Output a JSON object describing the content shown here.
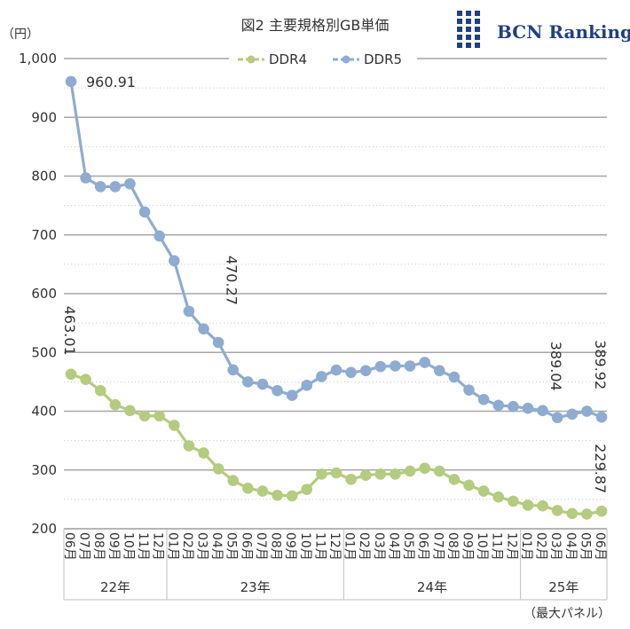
{
  "chart_data": {
    "type": "line",
    "title": "図2 主要規格別GB単価",
    "ylabel": "（円）",
    "ylim": [
      200,
      1000
    ],
    "yticks": [
      "200",
      "300",
      "400",
      "500",
      "600",
      "700",
      "800",
      "900",
      "1,000"
    ],
    "grid": true,
    "legend_position": "top",
    "source_logo": "BCN Ranking",
    "footnote": "（最大パネル）",
    "x": [
      "06月",
      "07月",
      "08月",
      "09月",
      "10月",
      "11月",
      "12月",
      "01月",
      "02月",
      "03月",
      "04月",
      "05月",
      "06月",
      "07月",
      "08月",
      "09月",
      "10月",
      "11月",
      "12月",
      "01月",
      "02月",
      "03月",
      "04月",
      "05月",
      "06月",
      "07月",
      "08月",
      "09月",
      "10月",
      "11月",
      "12月",
      "01月",
      "02月",
      "03月",
      "04月",
      "05月",
      "06月"
    ],
    "year_groups": [
      {
        "label": "22年",
        "start": 0,
        "end": 6
      },
      {
        "label": "23年",
        "start": 7,
        "end": 18
      },
      {
        "label": "24年",
        "start": 19,
        "end": 30
      },
      {
        "label": "25年",
        "start": 31,
        "end": 36
      }
    ],
    "series": [
      {
        "name": "DDR4",
        "color": "#b4cc7f",
        "values": [
          463.01,
          454,
          435,
          411,
          401,
          392,
          392,
          376,
          341,
          329,
          302,
          282,
          269,
          264,
          257,
          256,
          267,
          293,
          295,
          284,
          291,
          293,
          293,
          298,
          303,
          298,
          284,
          274,
          264,
          254,
          247,
          240,
          239,
          231,
          226,
          225,
          229.87
        ],
        "labels": [
          {
            "index": 0,
            "text": "463.01"
          },
          {
            "index": 36,
            "text": "229.87"
          }
        ]
      },
      {
        "name": "DDR5",
        "color": "#8eacd2",
        "values": [
          960.91,
          797,
          782,
          782,
          787,
          739,
          698,
          656,
          570,
          540,
          517,
          470.27,
          450,
          446,
          435,
          427,
          444,
          459,
          470,
          466,
          469,
          476,
          477,
          477,
          483,
          469,
          458,
          436,
          420,
          410,
          408,
          405,
          401,
          389.04,
          395,
          400,
          389.92
        ],
        "labels": [
          {
            "index": 0,
            "text": "960.91"
          },
          {
            "index": 11,
            "text": "470.27"
          },
          {
            "index": 33,
            "text": "389.04"
          },
          {
            "index": 36,
            "text": "389.92"
          }
        ]
      }
    ]
  }
}
